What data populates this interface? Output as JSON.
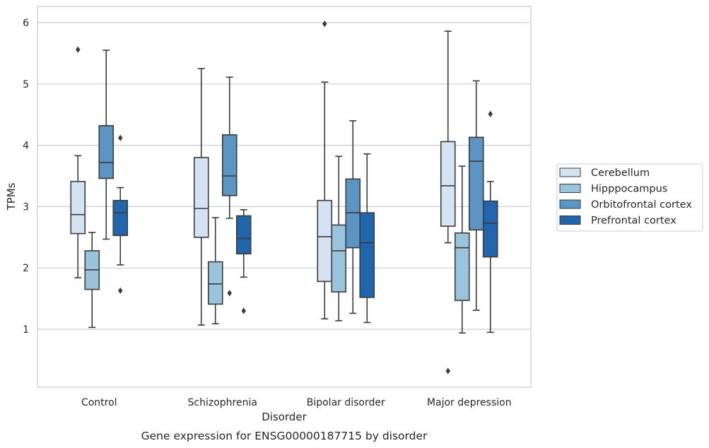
{
  "chart_data": {
    "type": "box",
    "xlabel": "Disorder",
    "ylabel": "TPMs",
    "caption": "Gene expression for ENSG00000187715 by disorder",
    "ylim": [
      0.0,
      6.25
    ],
    "yticks": [
      1,
      2,
      3,
      4,
      5,
      6
    ],
    "grid": true,
    "legend_position": "right",
    "categories": [
      "Control",
      "Schizophrenia",
      "Bipolar disorder",
      "Major depression"
    ],
    "series": [
      {
        "name": "Cerebellum",
        "color": "#d4e3f2",
        "boxes": [
          {
            "whislo": 1.84,
            "q1": 2.56,
            "med": 2.87,
            "q3": 3.41,
            "whishi": 3.83,
            "fliers": [
              5.56
            ]
          },
          {
            "whislo": 1.07,
            "q1": 2.5,
            "med": 2.97,
            "q3": 3.8,
            "whishi": 5.25,
            "fliers": []
          },
          {
            "whislo": 1.17,
            "q1": 1.78,
            "med": 2.51,
            "q3": 3.1,
            "whishi": 5.03,
            "fliers": [
              5.98
            ]
          },
          {
            "whislo": 2.41,
            "q1": 2.68,
            "med": 3.34,
            "q3": 4.06,
            "whishi": 5.86,
            "fliers": [
              0.32
            ]
          }
        ]
      },
      {
        "name": "Hipppocampus",
        "color": "#9ac3dc",
        "boxes": [
          {
            "whislo": 1.03,
            "q1": 1.65,
            "med": 1.97,
            "q3": 2.28,
            "whishi": 2.58,
            "fliers": []
          },
          {
            "whislo": 1.09,
            "q1": 1.41,
            "med": 1.74,
            "q3": 2.1,
            "whishi": 2.82,
            "fliers": []
          },
          {
            "whislo": 1.14,
            "q1": 1.61,
            "med": 2.28,
            "q3": 2.7,
            "whishi": 3.82,
            "fliers": []
          },
          {
            "whislo": 0.94,
            "q1": 1.47,
            "med": 2.33,
            "q3": 2.57,
            "whishi": 3.66,
            "fliers": []
          }
        ]
      },
      {
        "name": "Orbitofrontal cortex",
        "color": "#5a95c4",
        "boxes": [
          {
            "whislo": 2.47,
            "q1": 3.46,
            "med": 3.72,
            "q3": 4.32,
            "whishi": 5.55,
            "fliers": []
          },
          {
            "whislo": 2.81,
            "q1": 3.18,
            "med": 3.5,
            "q3": 4.17,
            "whishi": 5.11,
            "fliers": [
              1.59
            ]
          },
          {
            "whislo": 1.26,
            "q1": 2.33,
            "med": 2.9,
            "q3": 3.45,
            "whishi": 4.4,
            "fliers": []
          },
          {
            "whislo": 1.31,
            "q1": 2.62,
            "med": 3.74,
            "q3": 4.13,
            "whishi": 5.05,
            "fliers": []
          }
        ]
      },
      {
        "name": "Prefrontal cortex",
        "color": "#2166ac",
        "boxes": [
          {
            "whislo": 2.05,
            "q1": 2.53,
            "med": 2.9,
            "q3": 3.1,
            "whishi": 3.31,
            "fliers": [
              4.12,
              1.63
            ]
          },
          {
            "whislo": 1.85,
            "q1": 2.23,
            "med": 2.48,
            "q3": 2.85,
            "whishi": 2.95,
            "fliers": [
              1.3
            ]
          },
          {
            "whislo": 1.11,
            "q1": 1.52,
            "med": 2.41,
            "q3": 2.9,
            "whishi": 3.86,
            "fliers": []
          },
          {
            "whislo": 0.95,
            "q1": 2.18,
            "med": 2.73,
            "q3": 3.09,
            "whishi": 3.41,
            "fliers": [
              4.51
            ]
          }
        ]
      }
    ]
  }
}
